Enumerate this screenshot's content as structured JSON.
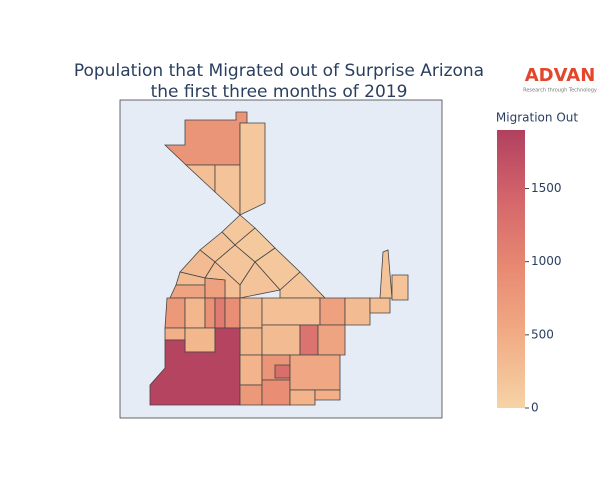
{
  "chart_data": {
    "type": "choropleth",
    "title": [
      "Population that Migrated out of Surprise Arizona",
      "the first three months of 2019"
    ],
    "logo": {
      "name": "ADVAN",
      "tagline": "Research through Technology"
    },
    "colorbar_title": "Migration Out",
    "clim": [
      0,
      1900
    ],
    "ticks": [
      0,
      500,
      1000,
      1500
    ],
    "colorscale": [
      "#f6d3a6",
      "#f2ad86",
      "#e88a72",
      "#d4666b",
      "#b1405f"
    ],
    "values": [
      800,
      250,
      200,
      150,
      150,
      200,
      120,
      300,
      180,
      150,
      200,
      250,
      300,
      600,
      650,
      180,
      750,
      350,
      850,
      1150,
      900,
      300,
      250,
      650,
      300,
      250,
      200,
      200,
      450,
      350,
      350,
      300,
      1250,
      600,
      1850,
      400,
      750,
      800,
      1300,
      900,
      550,
      400,
      450
    ]
  }
}
